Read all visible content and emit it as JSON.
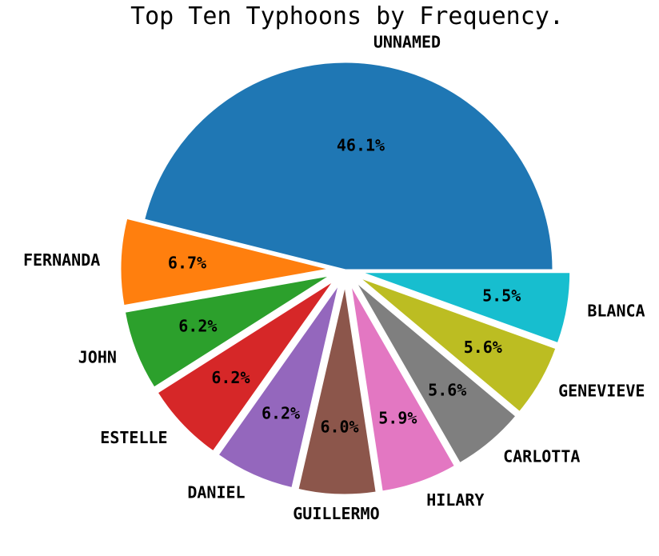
{
  "chart_data": {
    "type": "pie",
    "title": "Top Ten Typhoons by Frequency.",
    "categories": [
      "UNNAMED",
      "FERNANDA",
      "JOHN",
      "ESTELLE",
      "DANIEL",
      "GUILLERMO",
      "HILARY",
      "CARLOTTA",
      "GENEVIEVE",
      "BLANCA"
    ],
    "values": [
      46.1,
      6.7,
      6.2,
      6.2,
      6.2,
      6.0,
      5.9,
      5.6,
      5.6,
      5.5
    ],
    "percent_labels": [
      "46.1%",
      "6.7%",
      "6.2%",
      "6.2%",
      "6.2%",
      "6.0%",
      "5.9%",
      "5.6%",
      "5.6%",
      "5.5%"
    ],
    "colors": [
      "#1f77b4",
      "#ff7f0e",
      "#2ca02c",
      "#d62728",
      "#9467bd",
      "#8c564b",
      "#e377c2",
      "#7f7f7f",
      "#bcbd22",
      "#17becf"
    ],
    "exploded": true,
    "start_angle_deg": 0,
    "direction": "counterclockwise"
  }
}
